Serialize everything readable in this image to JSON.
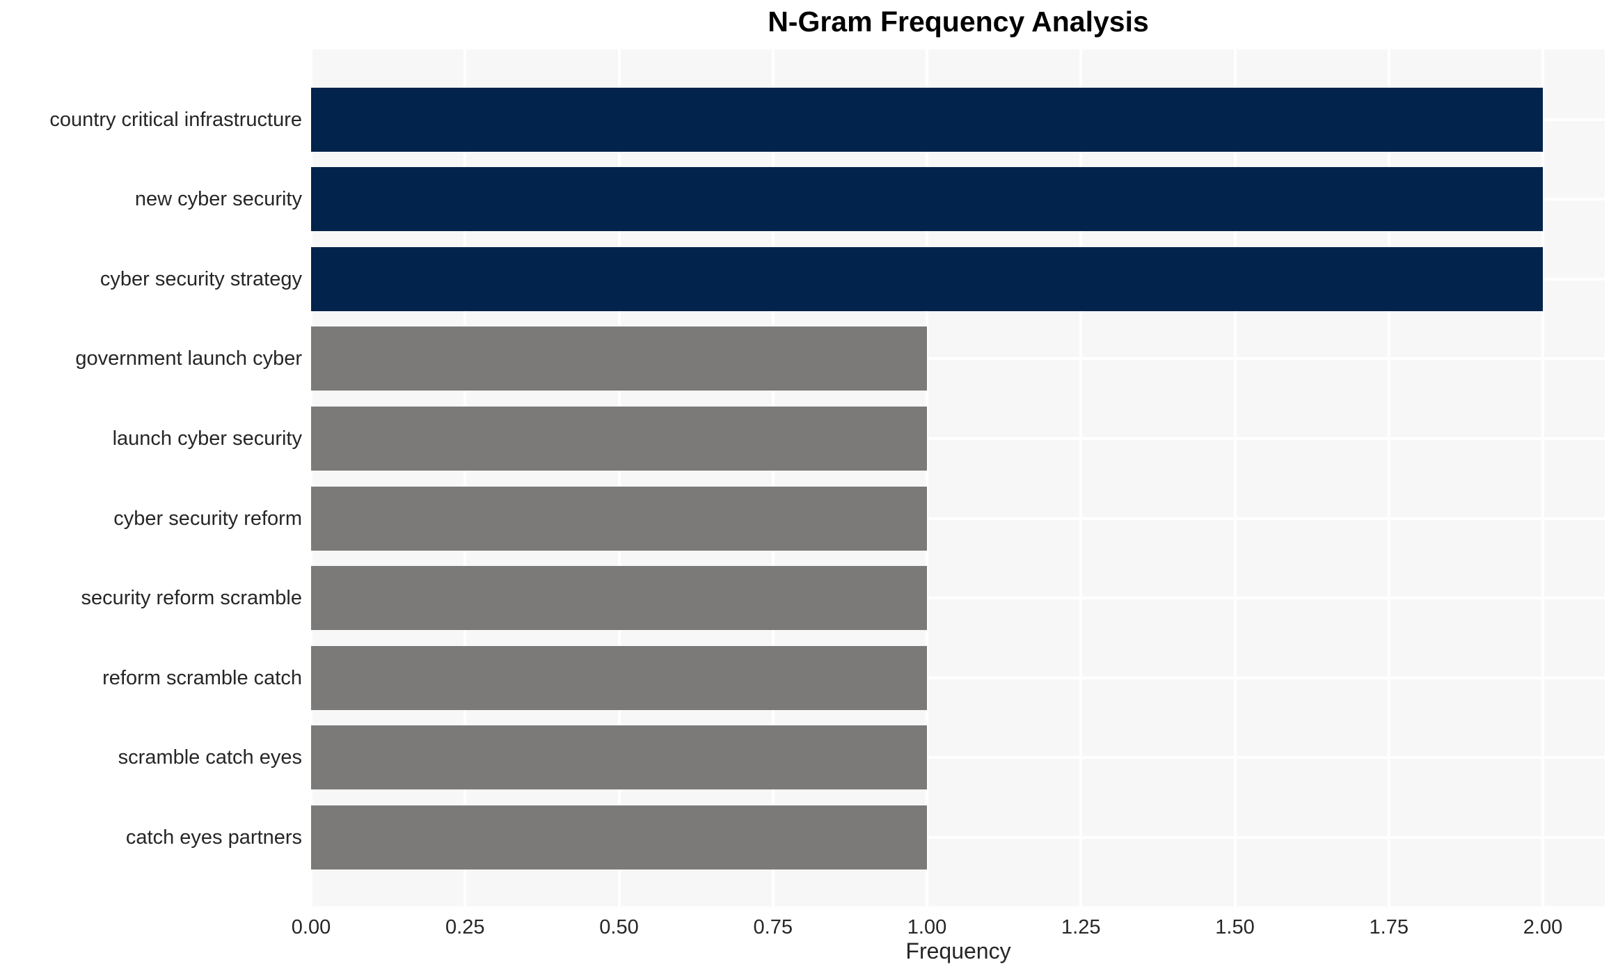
{
  "title": "N-Gram Frequency Analysis",
  "xlabel": "Frequency",
  "chart_data": {
    "type": "bar",
    "orientation": "horizontal",
    "title": "N-Gram Frequency Analysis",
    "xlabel": "Frequency",
    "ylabel": "",
    "categories": [
      "country critical infrastructure",
      "new cyber security",
      "cyber security strategy",
      "government launch cyber",
      "launch cyber security",
      "cyber security reform",
      "security reform scramble",
      "reform scramble catch",
      "scramble catch eyes",
      "catch eyes partners"
    ],
    "values": [
      2,
      2,
      2,
      1,
      1,
      1,
      1,
      1,
      1,
      1
    ],
    "bar_colors": [
      "#02234c",
      "#02234c",
      "#02234c",
      "#7b7a78",
      "#7b7a78",
      "#7b7a78",
      "#7b7a78",
      "#7b7a78",
      "#7b7a78",
      "#7b7a78"
    ],
    "xlim": [
      0,
      2.1
    ],
    "xticks": [
      0,
      0.25,
      0.5,
      0.75,
      1,
      1.25,
      1.5,
      1.75,
      2
    ],
    "xtick_labels": [
      "0.00",
      "0.25",
      "0.50",
      "0.75",
      "1.00",
      "1.25",
      "1.50",
      "1.75",
      "2.00"
    ],
    "grid": true,
    "legend": false,
    "colors": {
      "highlight_navy": "#02234c",
      "default_gray": "#7b7a78",
      "plot_background": "#f7f7f7",
      "gridline": "#ffffff",
      "tick_text": "#262626",
      "title_text": "#000000"
    }
  }
}
